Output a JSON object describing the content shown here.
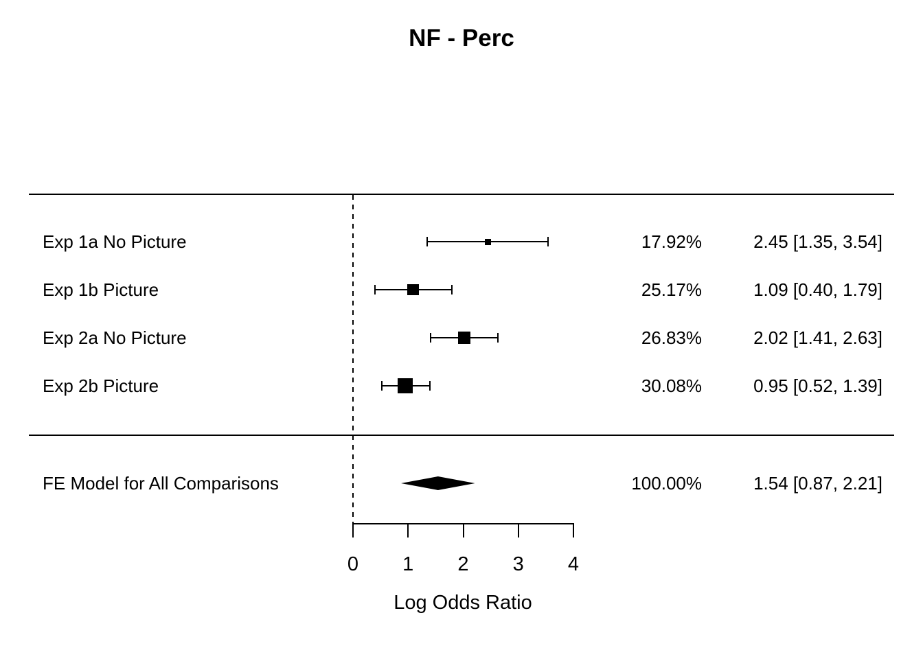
{
  "chart_data": {
    "type": "forest",
    "title": "NF - Perc",
    "xlabel": "Log Odds Ratio",
    "x_ticks": [
      0,
      1,
      2,
      3,
      4
    ],
    "xlim": [
      0,
      4
    ],
    "reference_line": 0,
    "studies": [
      {
        "label": "Exp 1a No Picture",
        "weight_pct": 17.92,
        "weight_text": "17.92%",
        "estimate": 2.45,
        "ci_lower": 1.35,
        "ci_upper": 3.54,
        "estimate_text": "2.45 [1.35, 3.54]"
      },
      {
        "label": "Exp 1b Picture",
        "weight_pct": 25.17,
        "weight_text": "25.17%",
        "estimate": 1.09,
        "ci_lower": 0.4,
        "ci_upper": 1.79,
        "estimate_text": "1.09 [0.40, 1.79]"
      },
      {
        "label": "Exp 2a No Picture",
        "weight_pct": 26.83,
        "weight_text": "26.83%",
        "estimate": 2.02,
        "ci_lower": 1.41,
        "ci_upper": 2.63,
        "estimate_text": "2.02 [1.41, 2.63]"
      },
      {
        "label": "Exp 2b Picture",
        "weight_pct": 30.08,
        "weight_text": "30.08%",
        "estimate": 0.95,
        "ci_lower": 0.52,
        "ci_upper": 1.39,
        "estimate_text": "0.95 [0.52, 1.39]"
      }
    ],
    "summary": {
      "label": "FE Model for All Comparisons",
      "weight_pct": 100.0,
      "weight_text": "100.00%",
      "estimate": 1.54,
      "ci_lower": 0.87,
      "ci_upper": 2.21,
      "estimate_text": "1.54 [0.87, 2.21]"
    },
    "colors": {
      "foreground": "#000000",
      "background": "#ffffff"
    }
  }
}
